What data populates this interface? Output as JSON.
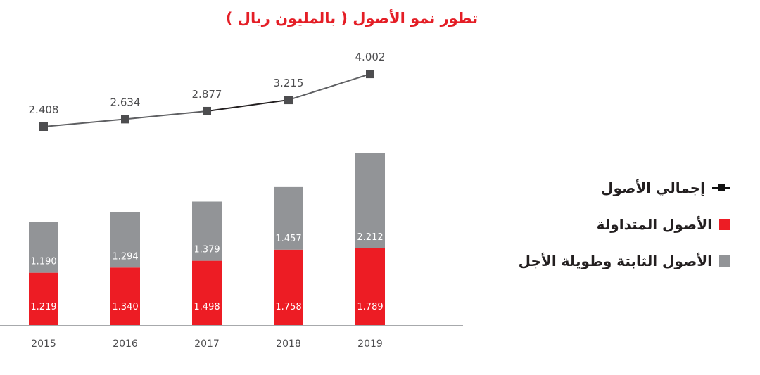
{
  "chart_data": {
    "type": "bar",
    "stacked": true,
    "title": "تطور نمو الأصول ( بالمليون ريال )",
    "categories": [
      "2015",
      "2016",
      "2017",
      "2018",
      "2019"
    ],
    "series": [
      {
        "name": "الأصول المتداولة",
        "color": "#ed1c24",
        "values": [
          1.219,
          1.34,
          1.498,
          1.758,
          1.789
        ],
        "labels": [
          "1.219",
          "1.340",
          "1.498",
          "1.758",
          "1.789"
        ]
      },
      {
        "name": "الأصول الثابتة وطويلة الأجل",
        "color": "#929497",
        "values": [
          1.19,
          1.294,
          1.379,
          1.457,
          2.212
        ],
        "labels": [
          "1.190",
          "1.294",
          "1.379",
          "1.457",
          "2.212"
        ]
      }
    ],
    "line_series": {
      "name": "إجمالي الأصول",
      "color": "#5e5f62",
      "values": [
        2.408,
        2.634,
        2.877,
        3.215,
        4.002
      ],
      "labels": [
        "2.408",
        "2.634",
        "2.877",
        "3.215",
        "4.002"
      ]
    },
    "legend_position": "right",
    "grid": false
  },
  "legend": {
    "items": [
      {
        "label": "إجمالي الأصول",
        "type": "line",
        "color": "#111111"
      },
      {
        "label": "الأصول المتداولة",
        "type": "box",
        "color": "#ed1c24"
      },
      {
        "label": "الأصول الثابتة وطويلة الأجل",
        "type": "box",
        "color": "#929497"
      }
    ]
  }
}
